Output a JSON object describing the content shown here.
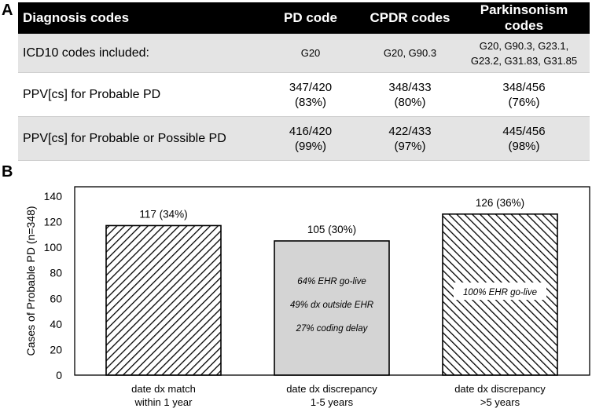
{
  "panels": {
    "a": "A",
    "b": "B"
  },
  "table": {
    "headers": [
      "Diagnosis codes",
      "PD code",
      "CPDR codes",
      "Parkinsonism codes"
    ],
    "rows": [
      {
        "cells": [
          "ICD10 codes included:",
          "G20",
          "G20, G90.3",
          "G20, G90.3, G23.1,\nG23.2, G31.83, G31.85"
        ]
      },
      {
        "cells": [
          "PPV[cs] for Probable PD",
          "347/420\n(83%)",
          "348/433\n(80%)",
          "348/456\n(76%)"
        ]
      },
      {
        "cells": [
          "PPV[cs] for Probable or Possible PD",
          "416/420\n(99%)",
          "422/433\n(97%)",
          "445/456\n(98%)"
        ]
      }
    ]
  },
  "chart_data": {
    "type": "bar",
    "ylabel": "Cases of Probable PD (n=348)",
    "ylim": [
      0,
      140
    ],
    "yticks": [
      0,
      20,
      40,
      60,
      80,
      100,
      120,
      140
    ],
    "categories": [
      "date dx match\nwithin 1 year",
      "date dx discrepancy\n1-5 years",
      "date dx discrepancy\n>5 years"
    ],
    "values": [
      117,
      105,
      126
    ],
    "data_labels": [
      "117 (34%)",
      "105 (30%)",
      "126 (36%)"
    ],
    "fills": [
      "hatch-back",
      "gray",
      "hatch-forward"
    ],
    "annotations": [
      [],
      [
        "64% EHR go-live",
        "49% dx outside EHR",
        "27% coding delay"
      ],
      [
        "100% EHR go-live"
      ]
    ],
    "grid": false,
    "legend": false
  },
  "colors": {
    "header_bg": "#000000",
    "row_gray": "#e4e4e4",
    "bar_gray": "#d4d4d4",
    "stroke": "#000000"
  }
}
